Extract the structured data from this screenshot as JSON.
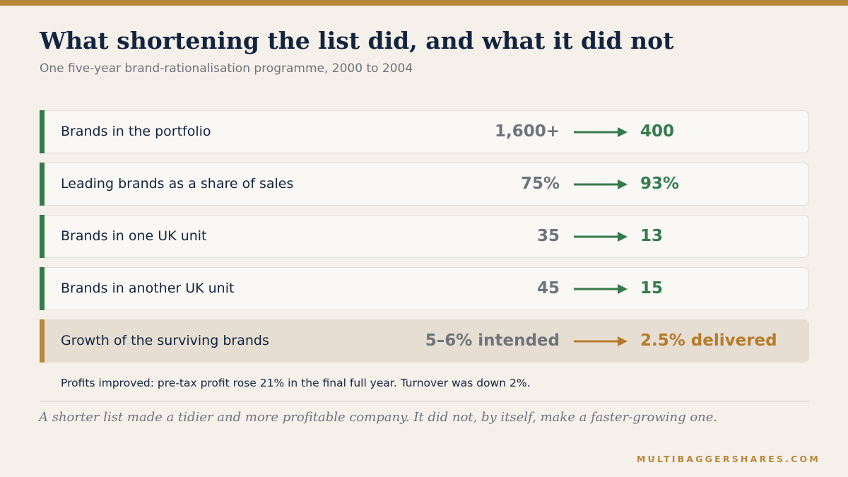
{
  "header": {
    "title": "What shortening the list did, and what it did not",
    "subtitle": "One five-year brand-rationalisation programme, 2000 to 2004"
  },
  "rows": [
    {
      "label": "Brands in the portfolio",
      "before": "1,600+",
      "after": "400"
    },
    {
      "label": "Leading brands as a share of sales",
      "before": "75%",
      "after": "93%"
    },
    {
      "label": "Brands in one UK unit",
      "before": "35",
      "after": "13"
    },
    {
      "label": "Brands in another UK unit",
      "before": "45",
      "after": "15"
    },
    {
      "label": "Growth of the surviving brands",
      "before": "5–6% intended",
      "after": "2.5% delivered"
    }
  ],
  "note": "Profits improved: pre-tax profit rose 21% in the final full year. Turnover was down 2%.",
  "conclusion": "A shorter list made a tidier and more profitable company. It did not, by itself, make a faster-growing one.",
  "footer": {
    "brand": "MULTIBAGGERSHARES.COM"
  },
  "colors": {
    "accent_gold": "#b9873a",
    "positive_green": "#347a4d",
    "title_navy": "#13243f",
    "muted_gray": "#6f737a"
  },
  "icons": {
    "arrow": "arrow-right-icon"
  }
}
